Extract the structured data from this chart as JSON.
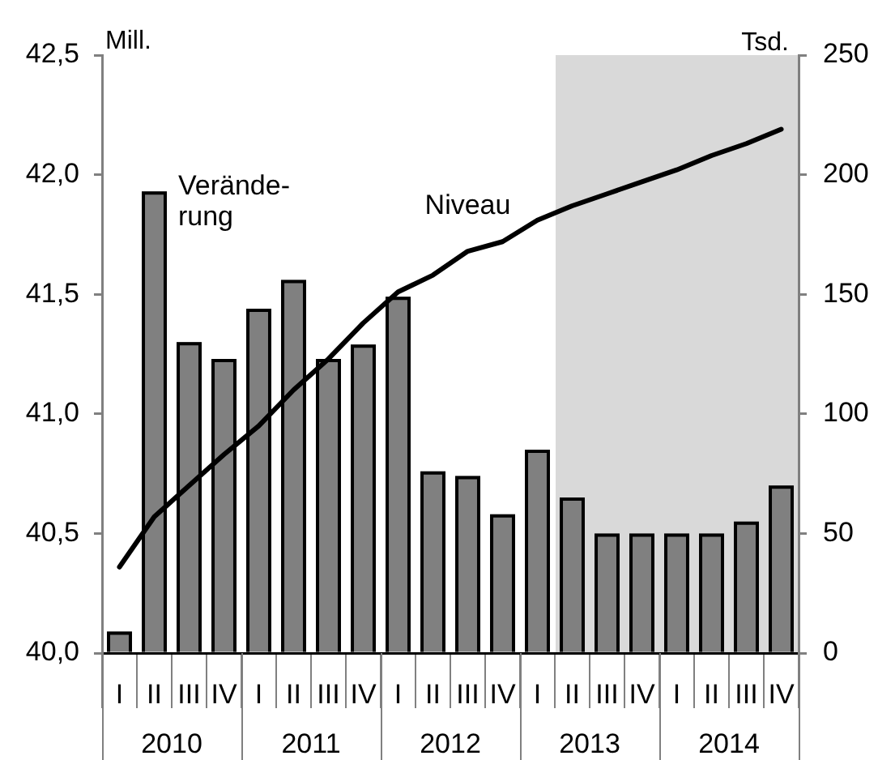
{
  "chart_data": {
    "type": "bar",
    "categories": [
      "I",
      "II",
      "III",
      "IV",
      "I",
      "II",
      "III",
      "IV",
      "I",
      "II",
      "III",
      "IV",
      "I",
      "II",
      "III",
      "IV",
      "I",
      "II",
      "III",
      "IV"
    ],
    "ylim": [
      40,
      42.5
    ],
    "yticks": [
      {
        "value": 40,
        "label": "40,0"
      },
      {
        "value": 40.5,
        "label": "40,5"
      },
      {
        "value": 41,
        "label": "41,0"
      },
      {
        "value": 41.5,
        "label": "41,5"
      },
      {
        "value": 42,
        "label": "42,0"
      },
      {
        "value": 42.5,
        "label": "42,5"
      }
    ],
    "y2lim": [
      0,
      250
    ],
    "y2ticks": [
      0,
      50,
      100,
      150,
      200,
      250
    ],
    "ylabel": "Mill.",
    "y2label": "Tsd.",
    "series": [
      {
        "name": "Verände-\nrung",
        "axis": "y2",
        "color": "#808080",
        "values": [
          9,
          193,
          130,
          123,
          144,
          156,
          123,
          129,
          149,
          76,
          74,
          58,
          85,
          65,
          50,
          50,
          50,
          50,
          55,
          70
        ]
      },
      {
        "name": "Niveau",
        "type": "line",
        "axis": "y",
        "color": "#000000",
        "values": [
          40.36,
          40.57,
          40.7,
          40.83,
          40.95,
          41.1,
          41.23,
          41.38,
          41.51,
          41.58,
          41.68,
          41.72,
          41.81,
          41.87,
          41.92,
          41.97,
          42.02,
          42.08,
          42.13,
          42.19
        ]
      }
    ],
    "annotations": [
      "2010",
      "2011",
      "2012",
      "2013",
      "2014"
    ],
    "marker": "none",
    "line_style": "solid"
  }
}
